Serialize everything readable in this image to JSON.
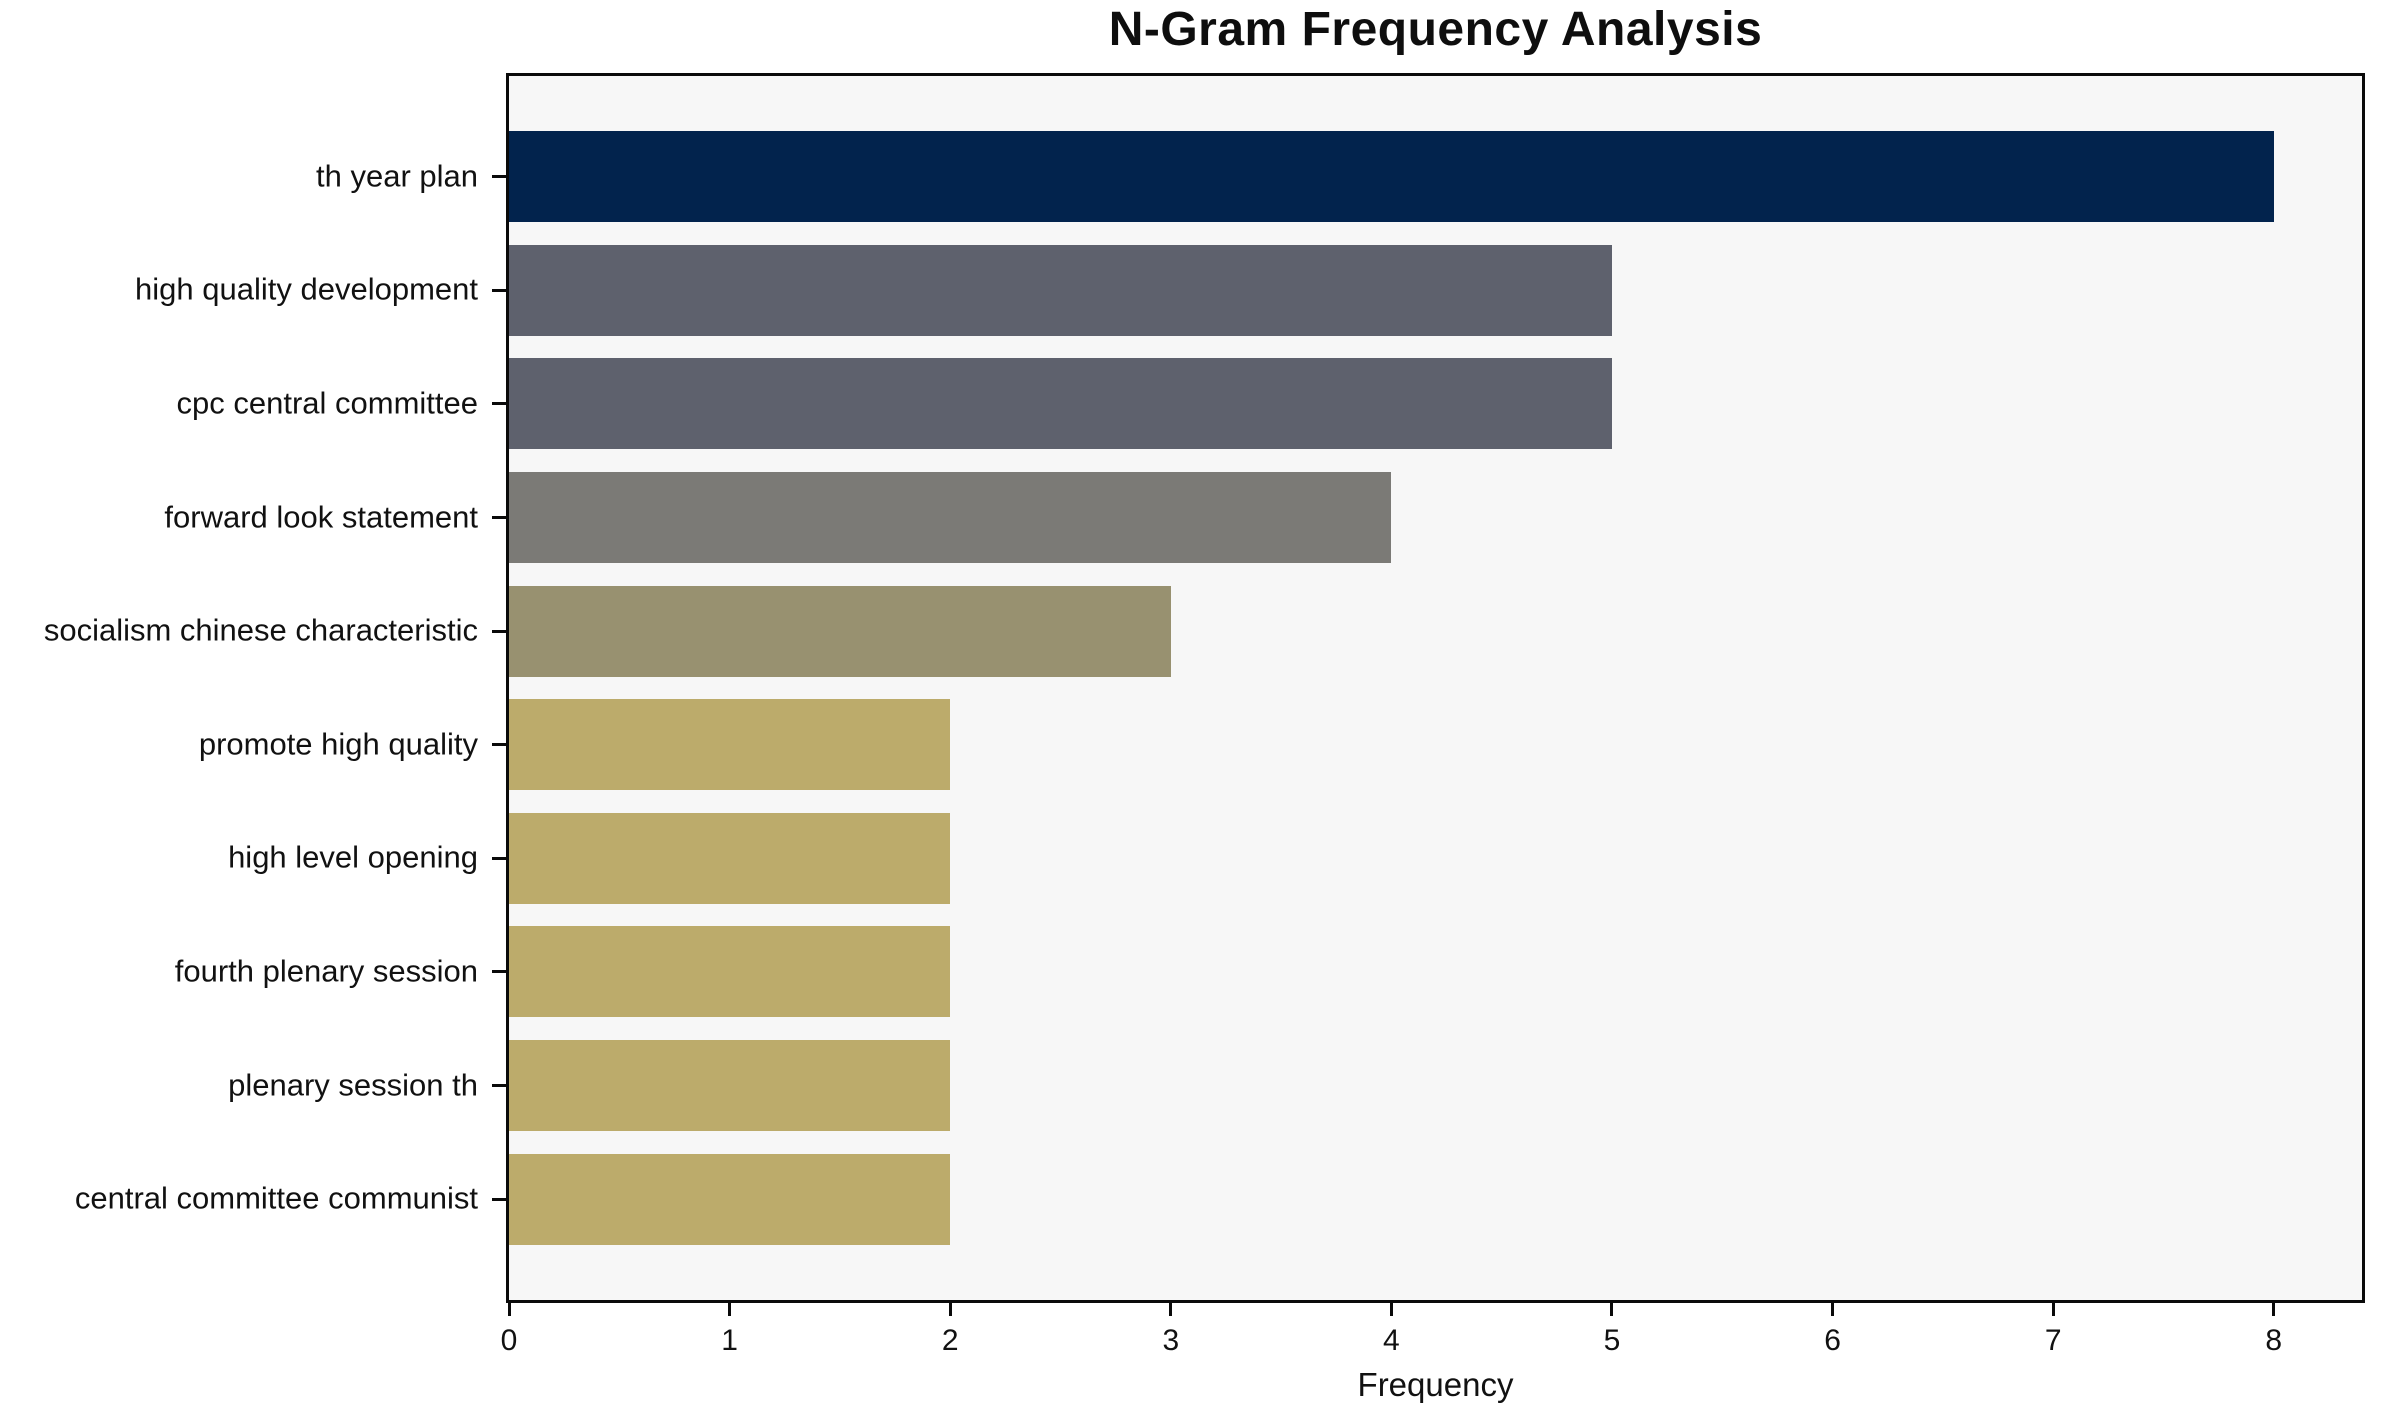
{
  "chart_data": {
    "type": "bar",
    "orientation": "horizontal",
    "title": "N-Gram Frequency Analysis",
    "xlabel": "Frequency",
    "ylabel": "",
    "categories": [
      "th year plan",
      "high quality development",
      "cpc central committee",
      "forward look statement",
      "socialism chinese characteristic",
      "promote high quality",
      "high level opening",
      "fourth plenary session",
      "plenary session th",
      "central committee communist"
    ],
    "values": [
      8,
      5,
      5,
      4,
      3,
      2,
      2,
      2,
      2,
      2
    ],
    "bar_colors": [
      "#02234d",
      "#5e616d",
      "#5e616d",
      "#7b7a76",
      "#989170",
      "#bcab6b",
      "#bcab6b",
      "#bcab6b",
      "#bcab6b",
      "#bcab6b"
    ],
    "x_ticks": [
      0,
      1,
      2,
      3,
      4,
      5,
      6,
      7,
      8
    ],
    "xlim": [
      0,
      8.4
    ],
    "grid": false,
    "legend": null,
    "plot_background": "#f7f7f7",
    "axis_color": "#0a0a0a"
  }
}
